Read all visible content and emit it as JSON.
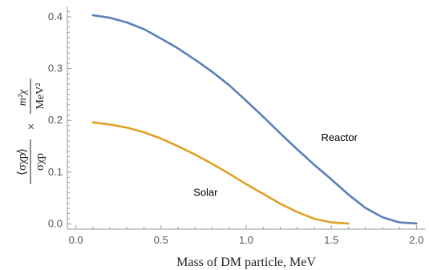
{
  "chart_data": {
    "type": "line",
    "xlabel": "Mass of DM particle, MeV",
    "ylabel": {
      "frac1_num": "⟨σχp̸⟩",
      "frac1_den": "σχp",
      "times": "×",
      "frac2_num": "m²χ",
      "frac2_den": "MeV²"
    },
    "xlim": [
      -0.05,
      2.05
    ],
    "ylim": [
      -0.01,
      0.42
    ],
    "xticks": [
      0.0,
      0.5,
      1.0,
      1.5,
      2.0
    ],
    "xtick_labels": [
      "0.0",
      "0.5",
      "1.0",
      "1.5",
      "2.0"
    ],
    "yticks": [
      0.0,
      0.1,
      0.2,
      0.3,
      0.4
    ],
    "ytick_labels": [
      "0.0",
      "0.1",
      "0.2",
      "0.3",
      "0.4"
    ],
    "grid": false,
    "series": [
      {
        "name": "Reactor",
        "color": "#5b7fb8",
        "x": [
          0.1,
          0.2,
          0.3,
          0.4,
          0.5,
          0.6,
          0.7,
          0.8,
          0.9,
          1.0,
          1.1,
          1.2,
          1.3,
          1.4,
          1.5,
          1.6,
          1.7,
          1.8,
          1.9,
          2.0
        ],
        "y": [
          0.403,
          0.398,
          0.389,
          0.376,
          0.358,
          0.339,
          0.317,
          0.294,
          0.268,
          0.238,
          0.207,
          0.175,
          0.144,
          0.114,
          0.086,
          0.057,
          0.031,
          0.013,
          0.003,
          0.001
        ]
      },
      {
        "name": "Solar",
        "color": "#e1a027",
        "x": [
          0.1,
          0.2,
          0.3,
          0.4,
          0.5,
          0.6,
          0.7,
          0.8,
          0.9,
          1.0,
          1.1,
          1.2,
          1.3,
          1.4,
          1.5,
          1.6
        ],
        "y": [
          0.196,
          0.192,
          0.186,
          0.177,
          0.165,
          0.15,
          0.134,
          0.116,
          0.097,
          0.077,
          0.058,
          0.039,
          0.023,
          0.01,
          0.003,
          0.001
        ]
      }
    ],
    "annotations": [
      {
        "text": "Reactor",
        "x": 1.44,
        "y": 0.16
      },
      {
        "text": "Solar",
        "x": 0.69,
        "y": 0.054
      }
    ]
  }
}
